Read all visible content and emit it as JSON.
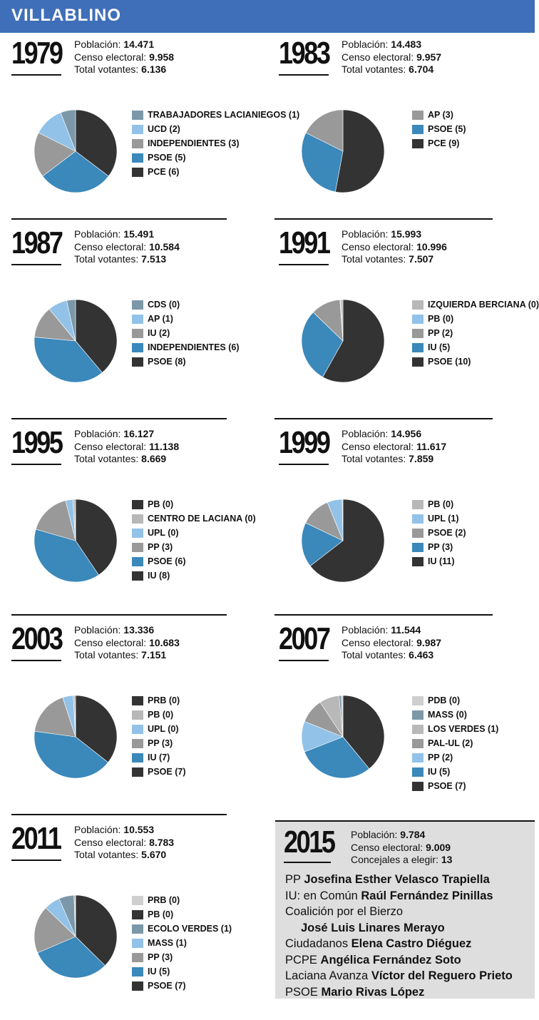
{
  "title": "VILLABLINO",
  "labels": {
    "poblacion": "Población:",
    "censo": "Censo electoral:",
    "votantes": "Total votantes:",
    "concejales": "Concejales a elegir:"
  },
  "colors": {
    "dark": "#333333",
    "blue": "#3b88bb",
    "gray": "#999999",
    "light_blue": "#92c2e8",
    "slate": "#7c98a8",
    "light_gray": "#b8b8b8",
    "pale": "#cfcfcf"
  },
  "chart_data": [
    {
      "type": "pie",
      "year": "1979",
      "stats": {
        "poblacion": "14.471",
        "censo": "9.958",
        "votantes": "6.136"
      },
      "series": [
        {
          "name": "TRABAJADORES LACIANIEGOS (1)",
          "value": 1,
          "color": "#7c98a8"
        },
        {
          "name": "UCD (2)",
          "value": 2,
          "color": "#92c2e8"
        },
        {
          "name": "INDEPENDIENTES (3)",
          "value": 3,
          "color": "#999999"
        },
        {
          "name": "PSOE (5)",
          "value": 5,
          "color": "#3b88bb"
        },
        {
          "name": "PCE (6)",
          "value": 6,
          "color": "#333333"
        }
      ]
    },
    {
      "type": "pie",
      "year": "1983",
      "stats": {
        "poblacion": "14.483",
        "censo": "9.957",
        "votantes": "6.704"
      },
      "series": [
        {
          "name": "AP (3)",
          "value": 3,
          "color": "#999999"
        },
        {
          "name": "PSOE (5)",
          "value": 5,
          "color": "#3b88bb"
        },
        {
          "name": "PCE (9)",
          "value": 9,
          "color": "#333333"
        }
      ]
    },
    {
      "type": "pie",
      "year": "1987",
      "stats": {
        "poblacion": "15.491",
        "censo": "10.584",
        "votantes": "7.513"
      },
      "series": [
        {
          "name": "CDS (0)",
          "value": 0.55,
          "color": "#7c98a8"
        },
        {
          "name": "AP (1)",
          "value": 1.2,
          "color": "#92c2e8"
        },
        {
          "name": "IU (2)",
          "value": 2,
          "color": "#999999"
        },
        {
          "name": "INDEPENDIENTES (6)",
          "value": 6,
          "color": "#3b88bb"
        },
        {
          "name": "PSOE (8)",
          "value": 6.2,
          "color": "#333333"
        }
      ]
    },
    {
      "type": "pie",
      "year": "1991",
      "stats": {
        "poblacion": "15.993",
        "censo": "10.996",
        "votantes": "7.507"
      },
      "series": [
        {
          "name": "IZQUIERDA BERCIANA (0)",
          "value": 0.15,
          "color": "#b8b8b8"
        },
        {
          "name": "PB (0)",
          "value": 0.05,
          "color": "#92c2e8"
        },
        {
          "name": "PP (2)",
          "value": 2,
          "color": "#999999"
        },
        {
          "name": "IU (5)",
          "value": 5,
          "color": "#3b88bb"
        },
        {
          "name": "PSOE (10)",
          "value": 10,
          "color": "#333333"
        }
      ]
    },
    {
      "type": "pie",
      "year": "1995",
      "stats": {
        "poblacion": "16.127",
        "censo": "11.138",
        "votantes": "8.669"
      },
      "series": [
        {
          "name": "PB (0)",
          "value": 0.05,
          "color": "#333333"
        },
        {
          "name": "CENTRO DE LACIANA (0)",
          "value": 0.15,
          "color": "#b8b8b8"
        },
        {
          "name": "UPL (0)",
          "value": 0.5,
          "color": "#92c2e8"
        },
        {
          "name": "PP (3)",
          "value": 3,
          "color": "#999999"
        },
        {
          "name": "PSOE (6)",
          "value": 7,
          "color": "#3b88bb"
        },
        {
          "name": "IU (8)",
          "value": 7.3,
          "color": "#333333"
        }
      ]
    },
    {
      "type": "pie",
      "year": "1999",
      "stats": {
        "poblacion": "14.956",
        "censo": "11.617",
        "votantes": "7.859"
      },
      "series": [
        {
          "name": "PB (0)",
          "value": 0.05,
          "color": "#b8b8b8"
        },
        {
          "name": "UPL (1)",
          "value": 1,
          "color": "#92c2e8"
        },
        {
          "name": "PSOE (2)",
          "value": 2,
          "color": "#999999"
        },
        {
          "name": "PP (3)",
          "value": 3,
          "color": "#3b88bb"
        },
        {
          "name": "IU (11)",
          "value": 11,
          "color": "#333333"
        }
      ]
    },
    {
      "type": "pie",
      "year": "2003",
      "stats": {
        "poblacion": "13.336",
        "censo": "10.683",
        "votantes": "7.151"
      },
      "series": [
        {
          "name": "PRB (0)",
          "value": 0.05,
          "color": "#333333"
        },
        {
          "name": "PB (0)",
          "value": 0.1,
          "color": "#b8b8b8"
        },
        {
          "name": "UPL (0)",
          "value": 0.7,
          "color": "#92c2e8"
        },
        {
          "name": "PP (3)",
          "value": 3,
          "color": "#999999"
        },
        {
          "name": "IU (7)",
          "value": 7,
          "color": "#3b88bb"
        },
        {
          "name": "PSOE (7)",
          "value": 6,
          "color": "#333333"
        }
      ]
    },
    {
      "type": "pie",
      "year": "2007",
      "stats": {
        "poblacion": "11.544",
        "censo": "9.987",
        "votantes": "6.463"
      },
      "series": [
        {
          "name": "PDB (0)",
          "value": 0.1,
          "color": "#cfcfcf"
        },
        {
          "name": "MASS (0)",
          "value": 0.15,
          "color": "#7c98a8"
        },
        {
          "name": "LOS VERDES (1)",
          "value": 1.3,
          "color": "#b8b8b8"
        },
        {
          "name": "PAL-UL (2)",
          "value": 1.6,
          "color": "#999999"
        },
        {
          "name": "PP (2)",
          "value": 2,
          "color": "#92c2e8"
        },
        {
          "name": "IU (5)",
          "value": 5,
          "color": "#3b88bb"
        },
        {
          "name": "PSOE (7)",
          "value": 6.5,
          "color": "#333333"
        }
      ]
    },
    {
      "type": "pie",
      "year": "2011",
      "stats": {
        "poblacion": "10.553",
        "censo": "8.783",
        "votantes": "5.670"
      },
      "series": [
        {
          "name": "PRB (0)",
          "value": 0.05,
          "color": "#cfcfcf"
        },
        {
          "name": "PB (0)",
          "value": 0.05,
          "color": "#333333"
        },
        {
          "name": "ECOLO VERDES (1)",
          "value": 0.95,
          "color": "#7c98a8"
        },
        {
          "name": "MASS (1)",
          "value": 1,
          "color": "#92c2e8"
        },
        {
          "name": "PP (3)",
          "value": 3,
          "color": "#999999"
        },
        {
          "name": "IU (5)",
          "value": 5,
          "color": "#3b88bb"
        },
        {
          "name": "PSOE (7)",
          "value": 6,
          "color": "#333333"
        }
      ]
    }
  ],
  "y2015": {
    "year": "2015",
    "poblacion": "9.784",
    "censo": "9.009",
    "concejales": "13",
    "candidates": [
      {
        "party": "PP",
        "name": "Josefina Esther Velasco Trapiella",
        "indent": false
      },
      {
        "party": "IU: en Común",
        "name": "Raúl Fernández Pinillas",
        "indent": false
      },
      {
        "party": "Coalición por el Bierzo",
        "name": "",
        "indent": false
      },
      {
        "party": "",
        "name": "José Luis Linares Merayo",
        "indent": true
      },
      {
        "party": "Ciudadanos",
        "name": "Elena Castro Diéguez",
        "indent": false
      },
      {
        "party": "PCPE",
        "name": "Angélica Fernández Soto",
        "indent": false
      },
      {
        "party": "Laciana Avanza",
        "name": "Víctor del Reguero Prieto",
        "indent": false
      },
      {
        "party": "PSOE",
        "name": "Mario Rivas López",
        "indent": false
      }
    ]
  }
}
